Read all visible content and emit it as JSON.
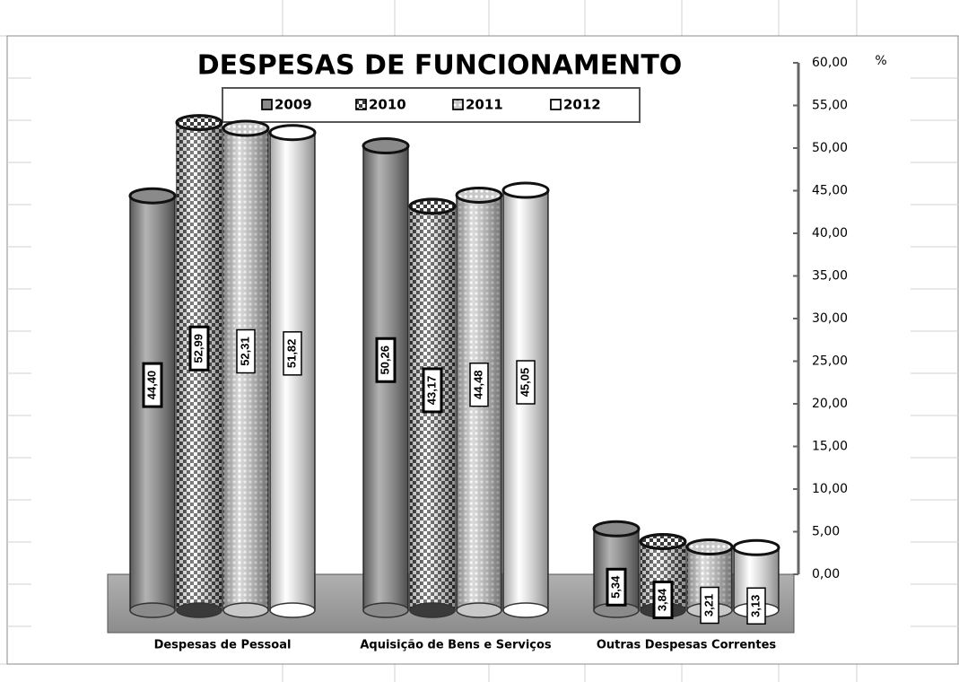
{
  "chart_data": {
    "type": "bar",
    "title": "DESPESAS DE FUNCIONAMENTO",
    "y_unit": "%",
    "categories": [
      "Despesas de Pessoal",
      "Aquisição de Bens e Serviços",
      "Outras Despesas Correntes"
    ],
    "series": [
      {
        "name": "2009",
        "color": "#8a8a8a",
        "values": [
          44.4,
          50.26,
          5.34
        ],
        "value_labels": [
          "44,40",
          "50,26",
          "5,34"
        ]
      },
      {
        "name": "2010",
        "color": "#3a3a3a",
        "values": [
          52.99,
          43.17,
          3.84
        ],
        "value_labels": [
          "52,99",
          "43,17",
          "3,84"
        ]
      },
      {
        "name": "2011",
        "color": "#c8c8c8",
        "values": [
          52.31,
          44.48,
          3.21
        ],
        "value_labels": [
          "52,31",
          "44,48",
          "3,21"
        ]
      },
      {
        "name": "2012",
        "color": "#ffffff",
        "values": [
          51.82,
          45.05,
          3.13
        ],
        "value_labels": [
          "51,82",
          "45,05",
          "3,13"
        ]
      }
    ],
    "ylim": [
      0,
      60
    ],
    "yticks": [
      {
        "value": 0,
        "label": "0,00"
      },
      {
        "value": 5,
        "label": "5,00"
      },
      {
        "value": 10,
        "label": "10,00"
      },
      {
        "value": 15,
        "label": "15,00"
      },
      {
        "value": 20,
        "label": "20,00"
      },
      {
        "value": 25,
        "label": "25,00"
      },
      {
        "value": 30,
        "label": "30,00"
      },
      {
        "value": 35,
        "label": "35,00"
      },
      {
        "value": 40,
        "label": "40,00"
      },
      {
        "value": 45,
        "label": "45,00"
      },
      {
        "value": 50,
        "label": "50,00"
      },
      {
        "value": 55,
        "label": "55,00"
      },
      {
        "value": 60,
        "label": "60,00"
      }
    ],
    "legend": "top"
  }
}
